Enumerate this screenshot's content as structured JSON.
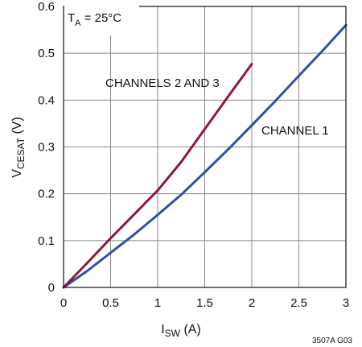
{
  "chart_data": {
    "type": "line",
    "x": [
      0,
      0.25,
      0.5,
      0.75,
      1.0,
      1.25,
      1.5,
      1.75,
      2.0,
      2.25,
      2.5,
      2.75,
      3.0
    ],
    "series": [
      {
        "name": "CHANNEL 1",
        "color": "#3050a0",
        "points": [
          [
            0,
            0
          ],
          [
            0.25,
            0.035
          ],
          [
            0.5,
            0.074
          ],
          [
            0.75,
            0.113
          ],
          [
            1.0,
            0.155
          ],
          [
            1.25,
            0.198
          ],
          [
            1.5,
            0.246
          ],
          [
            1.75,
            0.295
          ],
          [
            2.0,
            0.346
          ],
          [
            2.25,
            0.398
          ],
          [
            2.5,
            0.452
          ],
          [
            2.75,
            0.505
          ],
          [
            3.0,
            0.56
          ]
        ]
      },
      {
        "name": "CHANNELS 2 AND 3",
        "color": "#8b1a3a",
        "points": [
          [
            0,
            0
          ],
          [
            0.25,
            0.052
          ],
          [
            0.5,
            0.105
          ],
          [
            0.75,
            0.156
          ],
          [
            1.0,
            0.207
          ],
          [
            1.25,
            0.268
          ],
          [
            1.5,
            0.338
          ],
          [
            1.75,
            0.408
          ],
          [
            2.0,
            0.477
          ]
        ]
      }
    ],
    "xlabel_main": "I",
    "xlabel_sub": "SW",
    "xlabel_unit": " (A)",
    "ylabel_main": "V",
    "ylabel_sub": "CESAT",
    "ylabel_unit": " (V)",
    "annotation_main": "T",
    "annotation_sub": "A",
    "annotation_rest": " = 25°C",
    "figure_id": "3507A G03",
    "xlim": [
      0,
      3
    ],
    "ylim": [
      0,
      0.6
    ],
    "xticks": [
      0,
      0.5,
      1,
      1.5,
      2,
      2.5,
      3
    ],
    "xtick_labels": [
      "0",
      "0.5",
      "1",
      "1.5",
      "2",
      "2.5",
      "3"
    ],
    "yticks": [
      0,
      0.1,
      0.2,
      0.3,
      0.4,
      0.5,
      0.6
    ],
    "ytick_labels": [
      "0",
      "0.1",
      "0.2",
      "0.3",
      "0.4",
      "0.5",
      "0.6"
    ],
    "grid": true,
    "grid_color": "#888888",
    "axis_color": "#111111"
  }
}
